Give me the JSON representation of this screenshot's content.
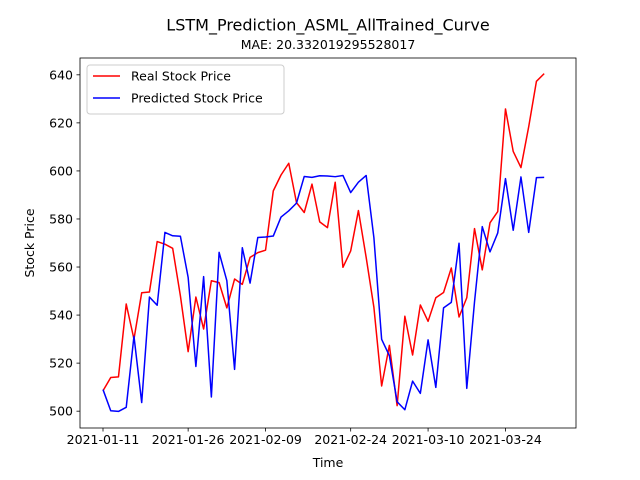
{
  "chart_data": {
    "type": "line",
    "title": "LSTM_Prediction_ASML_AllTrained_Curve",
    "subtitle": "MAE: 20.332019295528017",
    "xlabel": "Time",
    "ylabel": "Stock Price",
    "x_tick_labels": [
      "2021-01-11",
      "2021-01-26",
      "2021-02-09",
      "2021-02-24",
      "2021-03-10",
      "2021-03-24"
    ],
    "y_ticks": [
      500,
      520,
      540,
      560,
      580,
      600,
      620,
      640
    ],
    "ylim": [
      493,
      647
    ],
    "x_range_days": [
      -2,
      87
    ],
    "legend_position": "upper-left",
    "grid": false,
    "series": [
      {
        "name": "Real Stock Price",
        "color": "#ff0000",
        "points": [
          [
            0,
            508.5
          ],
          [
            1,
            514
          ],
          [
            2,
            514.3
          ],
          [
            3,
            544.6
          ],
          [
            4,
            530
          ],
          [
            5,
            549.3
          ],
          [
            6,
            549.6
          ],
          [
            7,
            570.6
          ],
          [
            8,
            569.5
          ],
          [
            9,
            567.8
          ],
          [
            10,
            548
          ],
          [
            11,
            524.8
          ],
          [
            12,
            547.5
          ],
          [
            13,
            534.2
          ],
          [
            14,
            554.3
          ],
          [
            15,
            553.5
          ],
          [
            16,
            543
          ],
          [
            17,
            555
          ],
          [
            18,
            552.8
          ],
          [
            19,
            564
          ],
          [
            20,
            566
          ],
          [
            21,
            567
          ],
          [
            22,
            591.7
          ],
          [
            23,
            598.3
          ],
          [
            24,
            603.2
          ],
          [
            25,
            586.8
          ],
          [
            26,
            582.7
          ],
          [
            27,
            594.5
          ],
          [
            28,
            578.8
          ],
          [
            29,
            576.4
          ],
          [
            30,
            595.3
          ],
          [
            31,
            559.9
          ],
          [
            32,
            566.7
          ],
          [
            33,
            583.5
          ],
          [
            34,
            564
          ],
          [
            35,
            543.2
          ],
          [
            36,
            510.5
          ],
          [
            37,
            527.4
          ],
          [
            38,
            502.3
          ],
          [
            39,
            539.5
          ],
          [
            40,
            523.4
          ],
          [
            41,
            544.2
          ],
          [
            42,
            537.4
          ],
          [
            43,
            547.2
          ],
          [
            44,
            549.4
          ],
          [
            45,
            559.6
          ],
          [
            46,
            539.2
          ],
          [
            47,
            547.2
          ],
          [
            48,
            576
          ],
          [
            49,
            558.8
          ],
          [
            50,
            578.4
          ],
          [
            51,
            583.1
          ],
          [
            52,
            625.8
          ],
          [
            53,
            608.1
          ],
          [
            54,
            601.4
          ],
          [
            55,
            618.4
          ],
          [
            56,
            637.3
          ],
          [
            57,
            640.5
          ]
        ]
      },
      {
        "name": "Predicted Stock Price",
        "color": "#0000ff",
        "points": [
          [
            0,
            509
          ],
          [
            1,
            500.2
          ],
          [
            2,
            499.9
          ],
          [
            3,
            501.6
          ],
          [
            4,
            531.2
          ],
          [
            5,
            503.6
          ],
          [
            6,
            547.5
          ],
          [
            7,
            544.1
          ],
          [
            8,
            574.4
          ],
          [
            9,
            573
          ],
          [
            10,
            572.8
          ],
          [
            11,
            555.7
          ],
          [
            12,
            518.6
          ],
          [
            13,
            556
          ],
          [
            14,
            505.9
          ],
          [
            15,
            566.1
          ],
          [
            16,
            554.3
          ],
          [
            17,
            517.4
          ],
          [
            18,
            568
          ],
          [
            19,
            553.3
          ],
          [
            20,
            572.3
          ],
          [
            21,
            572.5
          ],
          [
            22,
            572.9
          ],
          [
            23,
            580.8
          ],
          [
            24,
            583.4
          ],
          [
            25,
            586.6
          ],
          [
            26,
            597.7
          ],
          [
            27,
            597.3
          ],
          [
            28,
            598
          ],
          [
            29,
            597.9
          ],
          [
            30,
            597.6
          ],
          [
            31,
            598.1
          ],
          [
            32,
            591
          ],
          [
            33,
            595.3
          ],
          [
            34,
            598.1
          ],
          [
            35,
            572.2
          ],
          [
            36,
            529.9
          ],
          [
            37,
            523.1
          ],
          [
            38,
            503.9
          ],
          [
            39,
            500.6
          ],
          [
            40,
            512.5
          ],
          [
            41,
            507.4
          ],
          [
            42,
            529.7
          ],
          [
            43,
            509.9
          ],
          [
            44,
            543
          ],
          [
            45,
            545.3
          ],
          [
            46,
            569.9
          ],
          [
            47,
            509.5
          ],
          [
            48,
            545.5
          ],
          [
            49,
            576.8
          ],
          [
            50,
            566.3
          ],
          [
            51,
            574.2
          ],
          [
            52,
            596.8
          ],
          [
            53,
            575.3
          ],
          [
            54,
            597.5
          ],
          [
            55,
            574.4
          ],
          [
            56,
            597.2
          ],
          [
            57,
            597.3
          ]
        ]
      }
    ]
  }
}
